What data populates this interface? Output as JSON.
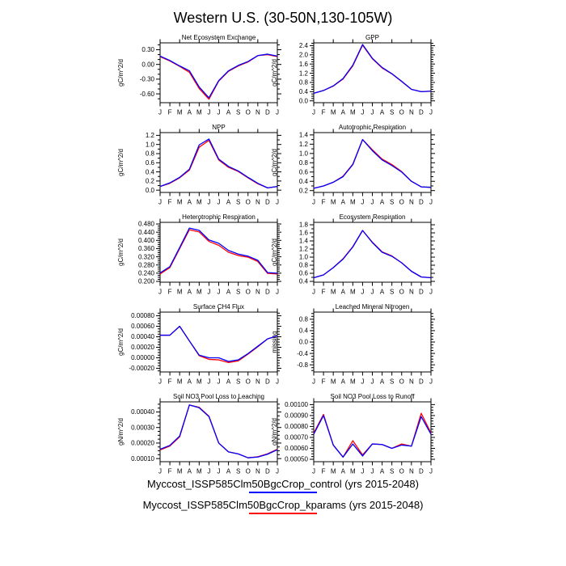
{
  "page_title": "Western U.S. (30-50N,130-105W)",
  "legend": [
    {
      "label": "Myccost_ISSP585Clm50BgcCrop_control (yrs 2015-2048)",
      "color": "#0000ff"
    },
    {
      "label": "Myccost_ISSP585Clm50BgcCrop_kparams (yrs 2015-2048)",
      "color": "#ff0000"
    }
  ],
  "chart_data": {
    "type": "line",
    "x_categories": [
      "J",
      "F",
      "M",
      "A",
      "M",
      "J",
      "J",
      "A",
      "S",
      "O",
      "N",
      "D",
      "J"
    ],
    "legend_position": "bottom",
    "grid": false,
    "plots": [
      {
        "id": "net-ecosystem-exchange",
        "title": "Net Ecosystem Exchange",
        "ylabel": "gC/m^2/d",
        "ylim": [
          -0.78,
          0.44
        ],
        "yticks": [
          -0.6,
          -0.3,
          0.0,
          0.3
        ],
        "ytick_labels": [
          "-0.60",
          "-0.30",
          "0.00",
          "0.30"
        ],
        "yminor": 2,
        "series": [
          {
            "name": "control",
            "color": "#0000ff",
            "values": [
              0.17,
              0.08,
              -0.03,
              -0.13,
              -0.46,
              -0.68,
              -0.33,
              -0.13,
              -0.02,
              0.06,
              0.18,
              0.21,
              0.17
            ]
          },
          {
            "name": "kparams",
            "color": "#ff0000",
            "values": [
              0.16,
              0.07,
              -0.04,
              -0.16,
              -0.49,
              -0.71,
              -0.34,
              -0.14,
              -0.03,
              0.05,
              0.18,
              0.2,
              0.16
            ]
          }
        ]
      },
      {
        "id": "gpp",
        "title": "GPP",
        "ylabel": "gC/m^2/d",
        "ylim": [
          -0.08,
          2.52
        ],
        "yticks": [
          0.0,
          0.4,
          0.8,
          1.2,
          1.6,
          2.0,
          2.4
        ],
        "ytick_labels": [
          "0.0",
          "0.4",
          "0.8",
          "1.2",
          "1.6",
          "2.0",
          "2.4"
        ],
        "yminor": 3,
        "series": [
          {
            "name": "control",
            "color": "#0000ff",
            "values": [
              0.33,
              0.45,
              0.65,
              0.97,
              1.55,
              2.45,
              1.85,
              1.45,
              1.18,
              0.85,
              0.5,
              0.4,
              0.42
            ]
          },
          {
            "name": "kparams",
            "color": "#ff0000",
            "values": [
              0.33,
              0.45,
              0.64,
              0.95,
              1.52,
              2.42,
              1.83,
              1.43,
              1.17,
              0.84,
              0.5,
              0.4,
              0.42
            ]
          }
        ]
      },
      {
        "id": "npp",
        "title": "NPP",
        "ylabel": "gC/m^2/d",
        "ylim": [
          -0.05,
          1.26
        ],
        "yticks": [
          0.0,
          0.2,
          0.4,
          0.6,
          0.8,
          1.0,
          1.2
        ],
        "ytick_labels": [
          "0.0",
          "0.2",
          "0.4",
          "0.6",
          "0.8",
          "1.0",
          "1.2"
        ],
        "yminor": 1,
        "series": [
          {
            "name": "control",
            "color": "#0000ff",
            "values": [
              0.08,
              0.16,
              0.28,
              0.46,
              0.99,
              1.12,
              0.68,
              0.52,
              0.42,
              0.28,
              0.15,
              0.05,
              0.08
            ]
          },
          {
            "name": "kparams",
            "color": "#ff0000",
            "values": [
              0.08,
              0.15,
              0.27,
              0.44,
              0.94,
              1.09,
              0.66,
              0.5,
              0.41,
              0.27,
              0.14,
              0.05,
              0.08
            ]
          }
        ]
      },
      {
        "id": "autotrophic-respiration",
        "title": "Autotrophic Respiration",
        "ylabel": "gC/m^2/d",
        "ylim": [
          0.16,
          1.45
        ],
        "yticks": [
          0.2,
          0.4,
          0.6,
          0.8,
          1.0,
          1.2,
          1.4
        ],
        "ytick_labels": [
          "0.2",
          "0.4",
          "0.6",
          "0.8",
          "1.0",
          "1.2",
          "1.4"
        ],
        "yminor": 1,
        "series": [
          {
            "name": "control",
            "color": "#0000ff",
            "values": [
              0.25,
              0.3,
              0.38,
              0.5,
              0.76,
              1.3,
              1.06,
              0.86,
              0.74,
              0.6,
              0.4,
              0.28,
              0.27
            ]
          },
          {
            "name": "kparams",
            "color": "#ff0000",
            "values": [
              0.25,
              0.3,
              0.38,
              0.51,
              0.77,
              1.3,
              1.08,
              0.88,
              0.76,
              0.61,
              0.4,
              0.28,
              0.27
            ]
          }
        ]
      },
      {
        "id": "heterotrophic-respiration",
        "title": "Heterotrophic Respiration",
        "ylabel": "gC/m^2/d",
        "ylim": [
          0.196,
          0.488
        ],
        "yticks": [
          0.2,
          0.24,
          0.28,
          0.32,
          0.36,
          0.4,
          0.44,
          0.48
        ],
        "ytick_labels": [
          "0.200",
          "0.240",
          "0.280",
          "0.320",
          "0.360",
          "0.400",
          "0.440",
          "0.480"
        ],
        "yminor": 3,
        "series": [
          {
            "name": "control",
            "color": "#0000ff",
            "values": [
              0.241,
              0.272,
              0.365,
              0.46,
              0.449,
              0.402,
              0.386,
              0.351,
              0.333,
              0.323,
              0.303,
              0.243,
              0.24
            ]
          },
          {
            "name": "kparams",
            "color": "#ff0000",
            "values": [
              0.236,
              0.267,
              0.36,
              0.452,
              0.441,
              0.395,
              0.376,
              0.342,
              0.326,
              0.318,
              0.297,
              0.239,
              0.236
            ]
          }
        ]
      },
      {
        "id": "ecosystem-respiration",
        "title": "Ecosystem Respiration",
        "ylabel": "gC/m^2/d",
        "ylim": [
          0.38,
          1.86
        ],
        "yticks": [
          0.4,
          0.6,
          0.8,
          1.0,
          1.2,
          1.4,
          1.6,
          1.8
        ],
        "ytick_labels": [
          "0.4",
          "0.6",
          "0.8",
          "1.0",
          "1.2",
          "1.4",
          "1.6",
          "1.8"
        ],
        "yminor": 1,
        "series": [
          {
            "name": "control",
            "color": "#0000ff",
            "values": [
              0.49,
              0.56,
              0.74,
              0.95,
              1.25,
              1.66,
              1.36,
              1.12,
              1.02,
              0.86,
              0.65,
              0.51,
              0.49
            ]
          },
          {
            "name": "kparams",
            "color": "#ff0000",
            "values": [
              0.49,
              0.56,
              0.74,
              0.96,
              1.26,
              1.66,
              1.37,
              1.13,
              1.03,
              0.86,
              0.65,
              0.51,
              0.49
            ]
          }
        ]
      },
      {
        "id": "surface-ch4-flux",
        "title": "Surface CH4 Flux",
        "ylabel": "gC/m^2/d",
        "ylim": [
          -0.00027,
          0.00087
        ],
        "yticks": [
          -0.0002,
          0.0,
          0.0002,
          0.0004,
          0.0006,
          0.0008
        ],
        "ytick_labels": [
          "-0.00020",
          "0.00000",
          "0.00020",
          "0.00040",
          "0.00060",
          "0.00080"
        ],
        "yminor": 3,
        "series": [
          {
            "name": "control",
            "color": "#0000ff",
            "values": [
              0.00043,
              0.00043,
              0.0006,
              0.00032,
              5e-05,
              0.0,
              0.0,
              -7e-05,
              -4e-05,
              8e-05,
              0.00022,
              0.00036,
              0.00042
            ]
          },
          {
            "name": "kparams",
            "color": "#ff0000",
            "values": [
              0.00043,
              0.00043,
              0.0006,
              0.00032,
              4e-05,
              -3e-05,
              -4e-05,
              -9e-05,
              -6e-05,
              7e-05,
              0.00021,
              0.00036,
              0.00042
            ]
          }
        ]
      },
      {
        "id": "leached-mineral-nitrogen",
        "title": "Leached Mineral Nitrogen",
        "ylabel": "missing",
        "ylim": [
          -1.05,
          1.05
        ],
        "yticks": [
          -0.8,
          -0.4,
          0.0,
          0.4,
          0.8
        ],
        "ytick_labels": [
          "-0.8",
          "-0.4",
          "0.0",
          "0.4",
          "0.8"
        ],
        "yminor": 3,
        "series": []
      },
      {
        "id": "soil-no3-pool-loss-to-leaching",
        "title": "Soil NO3 Pool Loss to Leaching",
        "ylabel": "gN/m^2/d",
        "ylim": [
          8e-05,
          0.000465
        ],
        "yticks": [
          0.0001,
          0.0002,
          0.0003,
          0.0004
        ],
        "ytick_labels": [
          "0.00010",
          "0.00020",
          "0.00030",
          "0.00040"
        ],
        "yminor": 3,
        "series": [
          {
            "name": "control",
            "color": "#0000ff",
            "values": [
              0.00016,
              0.000185,
              0.000245,
              0.000445,
              0.000427,
              0.00037,
              0.0002,
              0.000143,
              0.00013,
              0.000105,
              0.00011,
              0.000128,
              0.000157
            ]
          },
          {
            "name": "kparams",
            "color": "#ff0000",
            "values": [
              0.000155,
              0.000181,
              0.00024,
              0.000445,
              0.00043,
              0.000373,
              0.0002,
              0.000143,
              0.00013,
              0.000105,
              0.000112,
              0.000131,
              0.00016
            ]
          }
        ]
      },
      {
        "id": "soil-no3-pool-loss-to-runoff",
        "title": "Soil NO3 Pool Loss to Runoff",
        "ylabel": "gN/m^2/d",
        "ylim": [
          0.000478,
          0.001025
        ],
        "yticks": [
          0.0005,
          0.0006,
          0.0007,
          0.0008,
          0.0009,
          0.001
        ],
        "ytick_labels": [
          "0.00050",
          "0.00060",
          "0.00070",
          "0.00080",
          "0.00090",
          "0.00100"
        ],
        "yminor": 3,
        "series": [
          {
            "name": "control",
            "color": "#0000ff",
            "values": [
              0.00073,
              0.0009,
              0.00063,
              0.00052,
              0.00064,
              0.00053,
              0.00064,
              0.000635,
              0.0006,
              0.00063,
              0.00062,
              0.00089,
              0.00073
            ]
          },
          {
            "name": "kparams",
            "color": "#ff0000",
            "values": [
              0.00074,
              0.00091,
              0.00063,
              0.00052,
              0.00067,
              0.00054,
              0.00064,
              0.000635,
              0.0006,
              0.00064,
              0.00062,
              0.00092,
              0.00074
            ]
          }
        ]
      }
    ]
  }
}
